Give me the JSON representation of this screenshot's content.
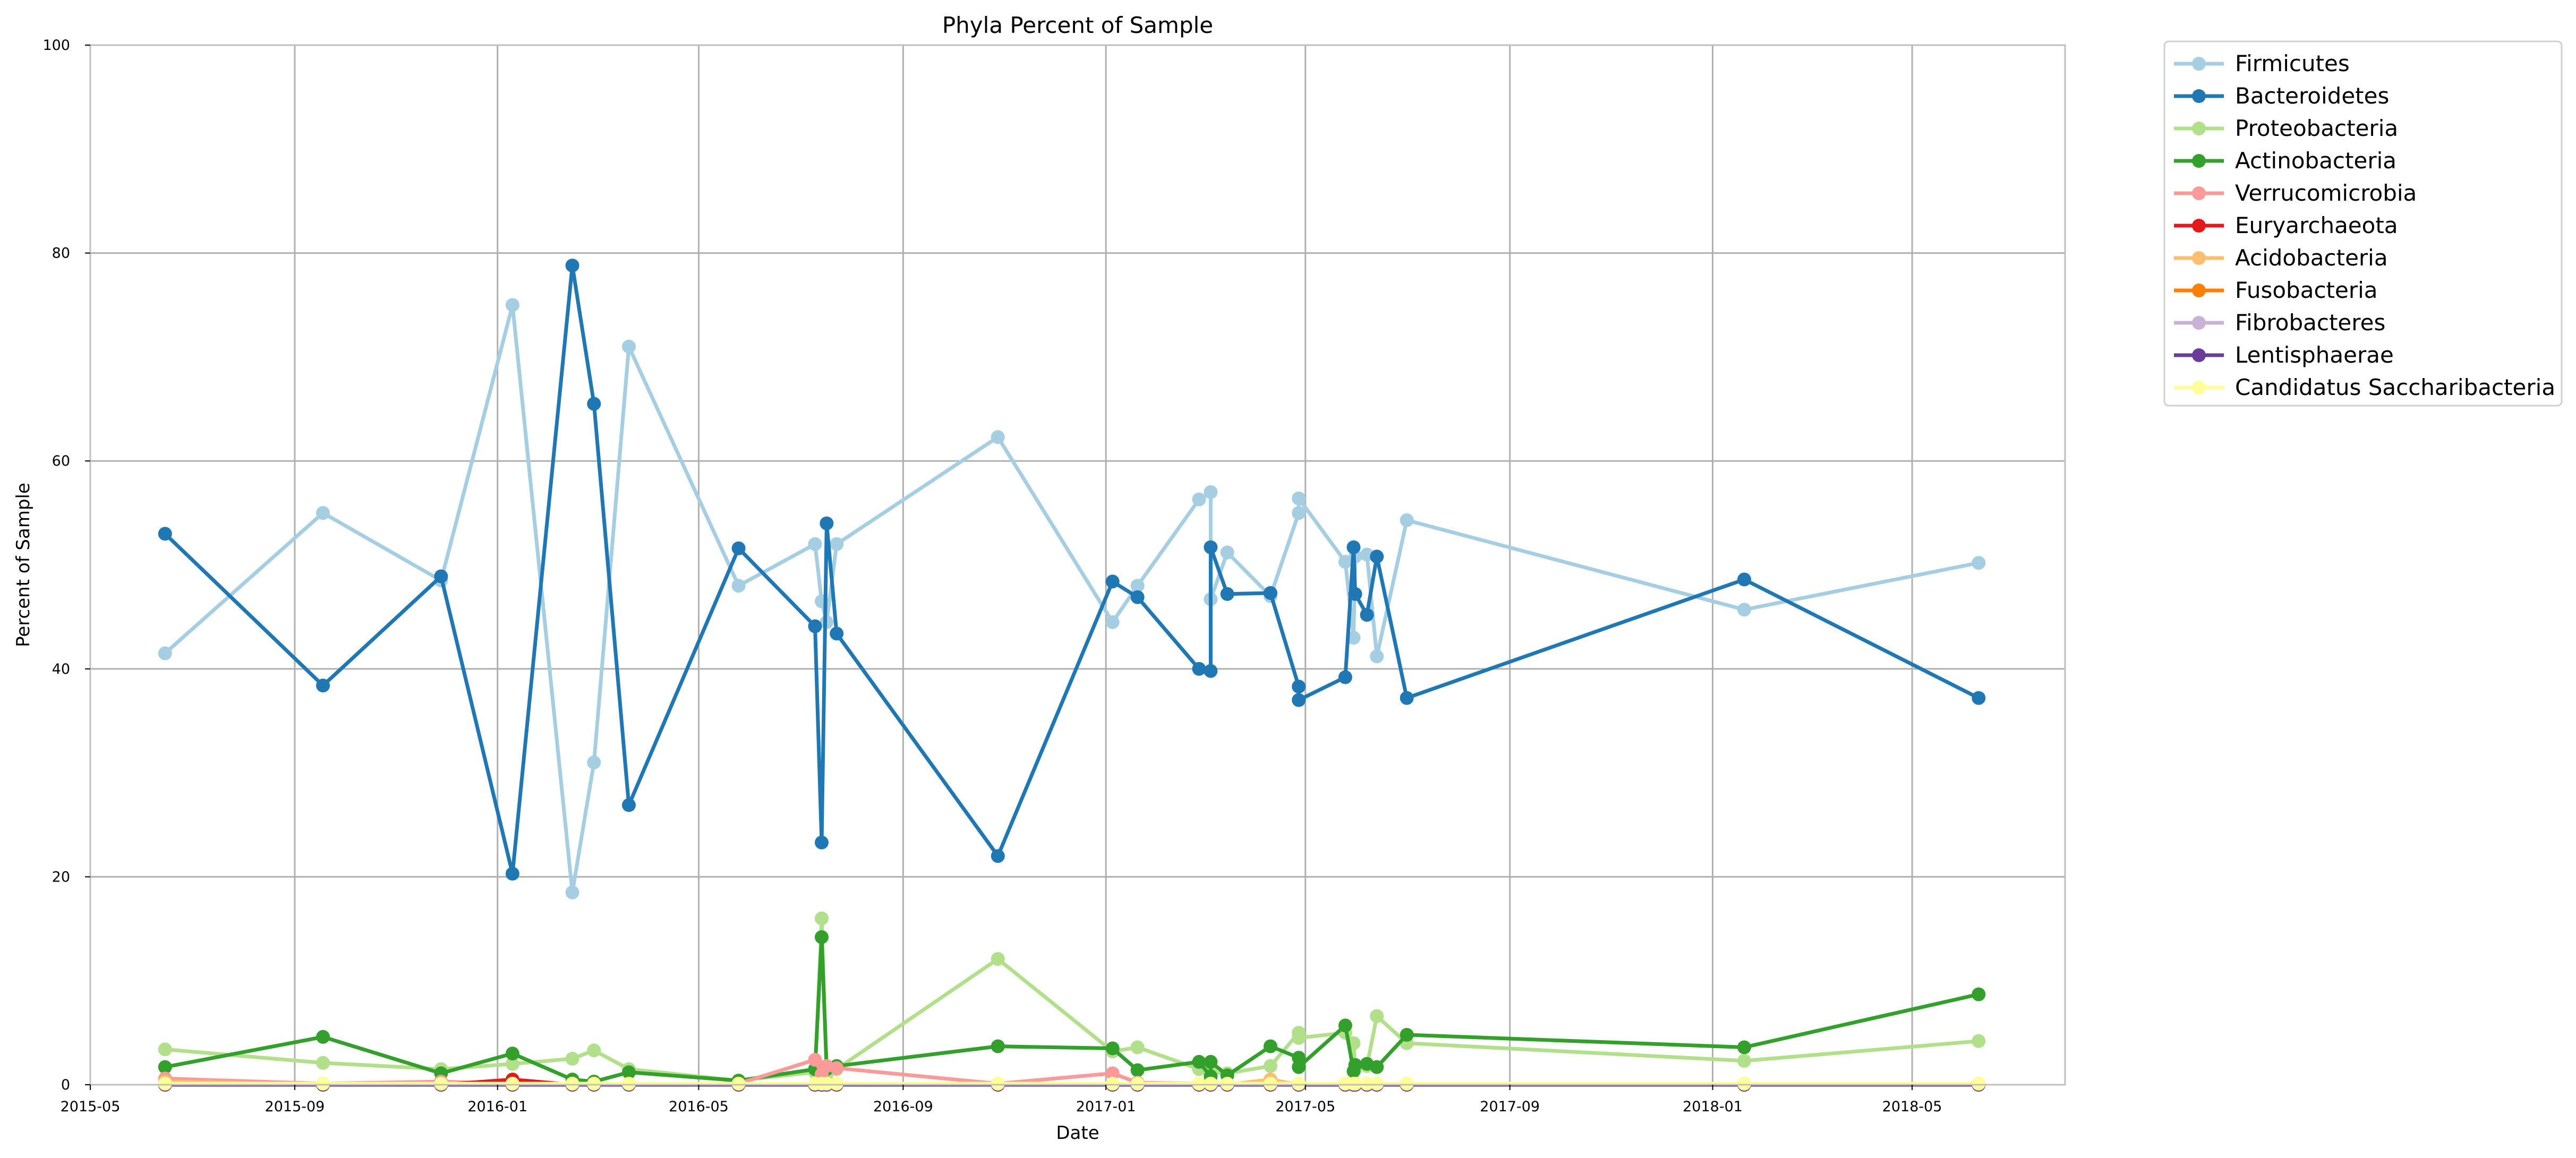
{
  "chart_data": {
    "type": "line",
    "title": "Phyla Percent of Sample",
    "xlabel": "Date",
    "ylabel": "Percent of Sample",
    "ylim": [
      0,
      100
    ],
    "xlim": [
      "2015-05-01",
      "2018-08-01"
    ],
    "x_ticks": [
      "2015-05",
      "2015-09",
      "2016-01",
      "2016-05",
      "2016-09",
      "2017-01",
      "2017-05",
      "2017-09",
      "2018-01",
      "2018-05"
    ],
    "y_ticks": [
      0,
      20,
      40,
      60,
      80,
      100
    ],
    "grid": true,
    "legend_position": "outside right, top",
    "x": [
      "2015-06-15",
      "2015-09-18",
      "2015-11-28",
      "2016-01-10",
      "2016-02-15",
      "2016-02-28",
      "2016-03-20",
      "2016-05-25",
      "2016-07-10",
      "2016-07-14",
      "2016-07-17",
      "2016-07-23",
      "2016-10-28",
      "2017-01-05",
      "2017-01-20",
      "2017-02-26",
      "2017-03-05",
      "2017-03-05",
      "2017-03-15",
      "2017-04-10",
      "2017-04-27",
      "2017-04-27",
      "2017-05-25",
      "2017-05-30",
      "2017-05-31",
      "2017-06-07",
      "2017-06-13",
      "2017-07-01",
      "2018-01-20",
      "2018-06-10"
    ],
    "series": [
      {
        "name": "Firmicutes",
        "color": "#a6cee3",
        "values": [
          41.5,
          55,
          48.5,
          75,
          18.5,
          31,
          71,
          48,
          52,
          46.5,
          44.5,
          52,
          62.3,
          44.5,
          48,
          56.3,
          57,
          46.7,
          51.2,
          47,
          55,
          56.4,
          50.3,
          43,
          50.8,
          51,
          41.2,
          54.3,
          45.7,
          50.2
        ]
      },
      {
        "name": "Bacteroidetes",
        "color": "#1f78b4",
        "values": [
          53,
          38.4,
          48.9,
          20.3,
          78.8,
          65.5,
          26.9,
          51.6,
          44.1,
          23.3,
          54,
          43.4,
          22,
          48.4,
          46.9,
          40,
          39.8,
          51.7,
          47.2,
          47.3,
          38.3,
          37,
          39.2,
          51.7,
          47.2,
          45.2,
          50.8,
          37.2,
          48.6,
          37.2
        ]
      },
      {
        "name": "Proteobacteria",
        "color": "#b2df8a",
        "values": [
          3.4,
          2.1,
          1.5,
          2,
          2.5,
          3.3,
          1.5,
          0.4,
          1.2,
          16,
          1,
          1.5,
          12.1,
          3.2,
          3.6,
          1.5,
          0.8,
          1.2,
          1.1,
          1.8,
          5,
          4.5,
          5,
          4,
          1.5,
          1.8,
          6.6,
          4,
          2.3,
          4.2
        ]
      },
      {
        "name": "Actinobacteria",
        "color": "#33a02c",
        "values": [
          1.7,
          4.6,
          1.1,
          3,
          0.5,
          0.3,
          1.2,
          0.4,
          1.5,
          14.2,
          1.5,
          1.8,
          3.7,
          3.5,
          1.4,
          2.2,
          0.8,
          2.2,
          0.9,
          3.7,
          2.6,
          1.7,
          5.7,
          1.3,
          1.9,
          2,
          1.7,
          4.8,
          3.6,
          8.7
        ]
      },
      {
        "name": "Verrucomicrobia",
        "color": "#fb9a99",
        "values": [
          0.6,
          0.1,
          0.3,
          0.1,
          0.1,
          0.1,
          0.1,
          0.1,
          2.4,
          1,
          1.8,
          1.6,
          0.1,
          1.1,
          0.2,
          0.1,
          0.1,
          0.1,
          0.1,
          0.1,
          0.1,
          0.1,
          0.1,
          0.1,
          0.1,
          0.1,
          0.1,
          0.1,
          0.1,
          0.1
        ]
      },
      {
        "name": "Euryarchaeota",
        "color": "#e31a1c",
        "values": [
          0,
          0,
          0,
          0.5,
          0,
          0,
          0,
          0,
          0,
          0,
          0,
          0,
          0,
          0,
          0,
          0,
          0,
          0,
          0,
          0,
          0,
          0,
          0,
          0,
          0,
          0,
          0,
          0,
          0,
          0
        ]
      },
      {
        "name": "Acidobacteria",
        "color": "#fdbf6f",
        "values": [
          0.3,
          0,
          0,
          0,
          0,
          0,
          0,
          0,
          0,
          0,
          0,
          0,
          0,
          0,
          0,
          0,
          0,
          0,
          0,
          0.5,
          0,
          0,
          0,
          0,
          0,
          0,
          0,
          0,
          0,
          0
        ]
      },
      {
        "name": "Fusobacteria",
        "color": "#ff7f00",
        "values": [
          0,
          0,
          0,
          0,
          0,
          0,
          0,
          0,
          0,
          0,
          0,
          0,
          0,
          0,
          0,
          0,
          0,
          0,
          0,
          0,
          0,
          0,
          0,
          0,
          0,
          0,
          0,
          0,
          0,
          0
        ]
      },
      {
        "name": "Fibrobacteres",
        "color": "#cab2d6",
        "values": [
          0,
          0,
          0,
          0,
          0,
          0,
          0,
          0,
          0,
          0,
          0,
          0,
          0,
          0,
          0,
          0,
          0,
          0,
          0,
          0,
          0,
          0,
          0,
          0,
          0,
          0,
          0,
          0,
          0,
          0
        ]
      },
      {
        "name": "Lentisphaerae",
        "color": "#6a3d9a",
        "values": [
          0,
          0,
          0,
          0,
          0,
          0,
          0,
          0,
          0,
          0,
          0,
          0,
          0,
          0,
          0,
          0,
          0,
          0,
          0,
          0,
          0,
          0,
          0,
          0,
          0,
          0,
          0,
          0,
          0,
          0
        ]
      },
      {
        "name": "Candidatus Saccharibacteria",
        "color": "#ffff99",
        "values": [
          0.1,
          0.1,
          0.1,
          0.1,
          0.1,
          0.1,
          0.1,
          0.1,
          0.1,
          0.1,
          0.1,
          0.1,
          0.1,
          0.1,
          0.1,
          0.1,
          0.1,
          0.1,
          0.1,
          0.1,
          0.1,
          0.1,
          0.1,
          0.1,
          0.1,
          0.1,
          0.1,
          0.1,
          0.1,
          0.1
        ]
      }
    ]
  }
}
